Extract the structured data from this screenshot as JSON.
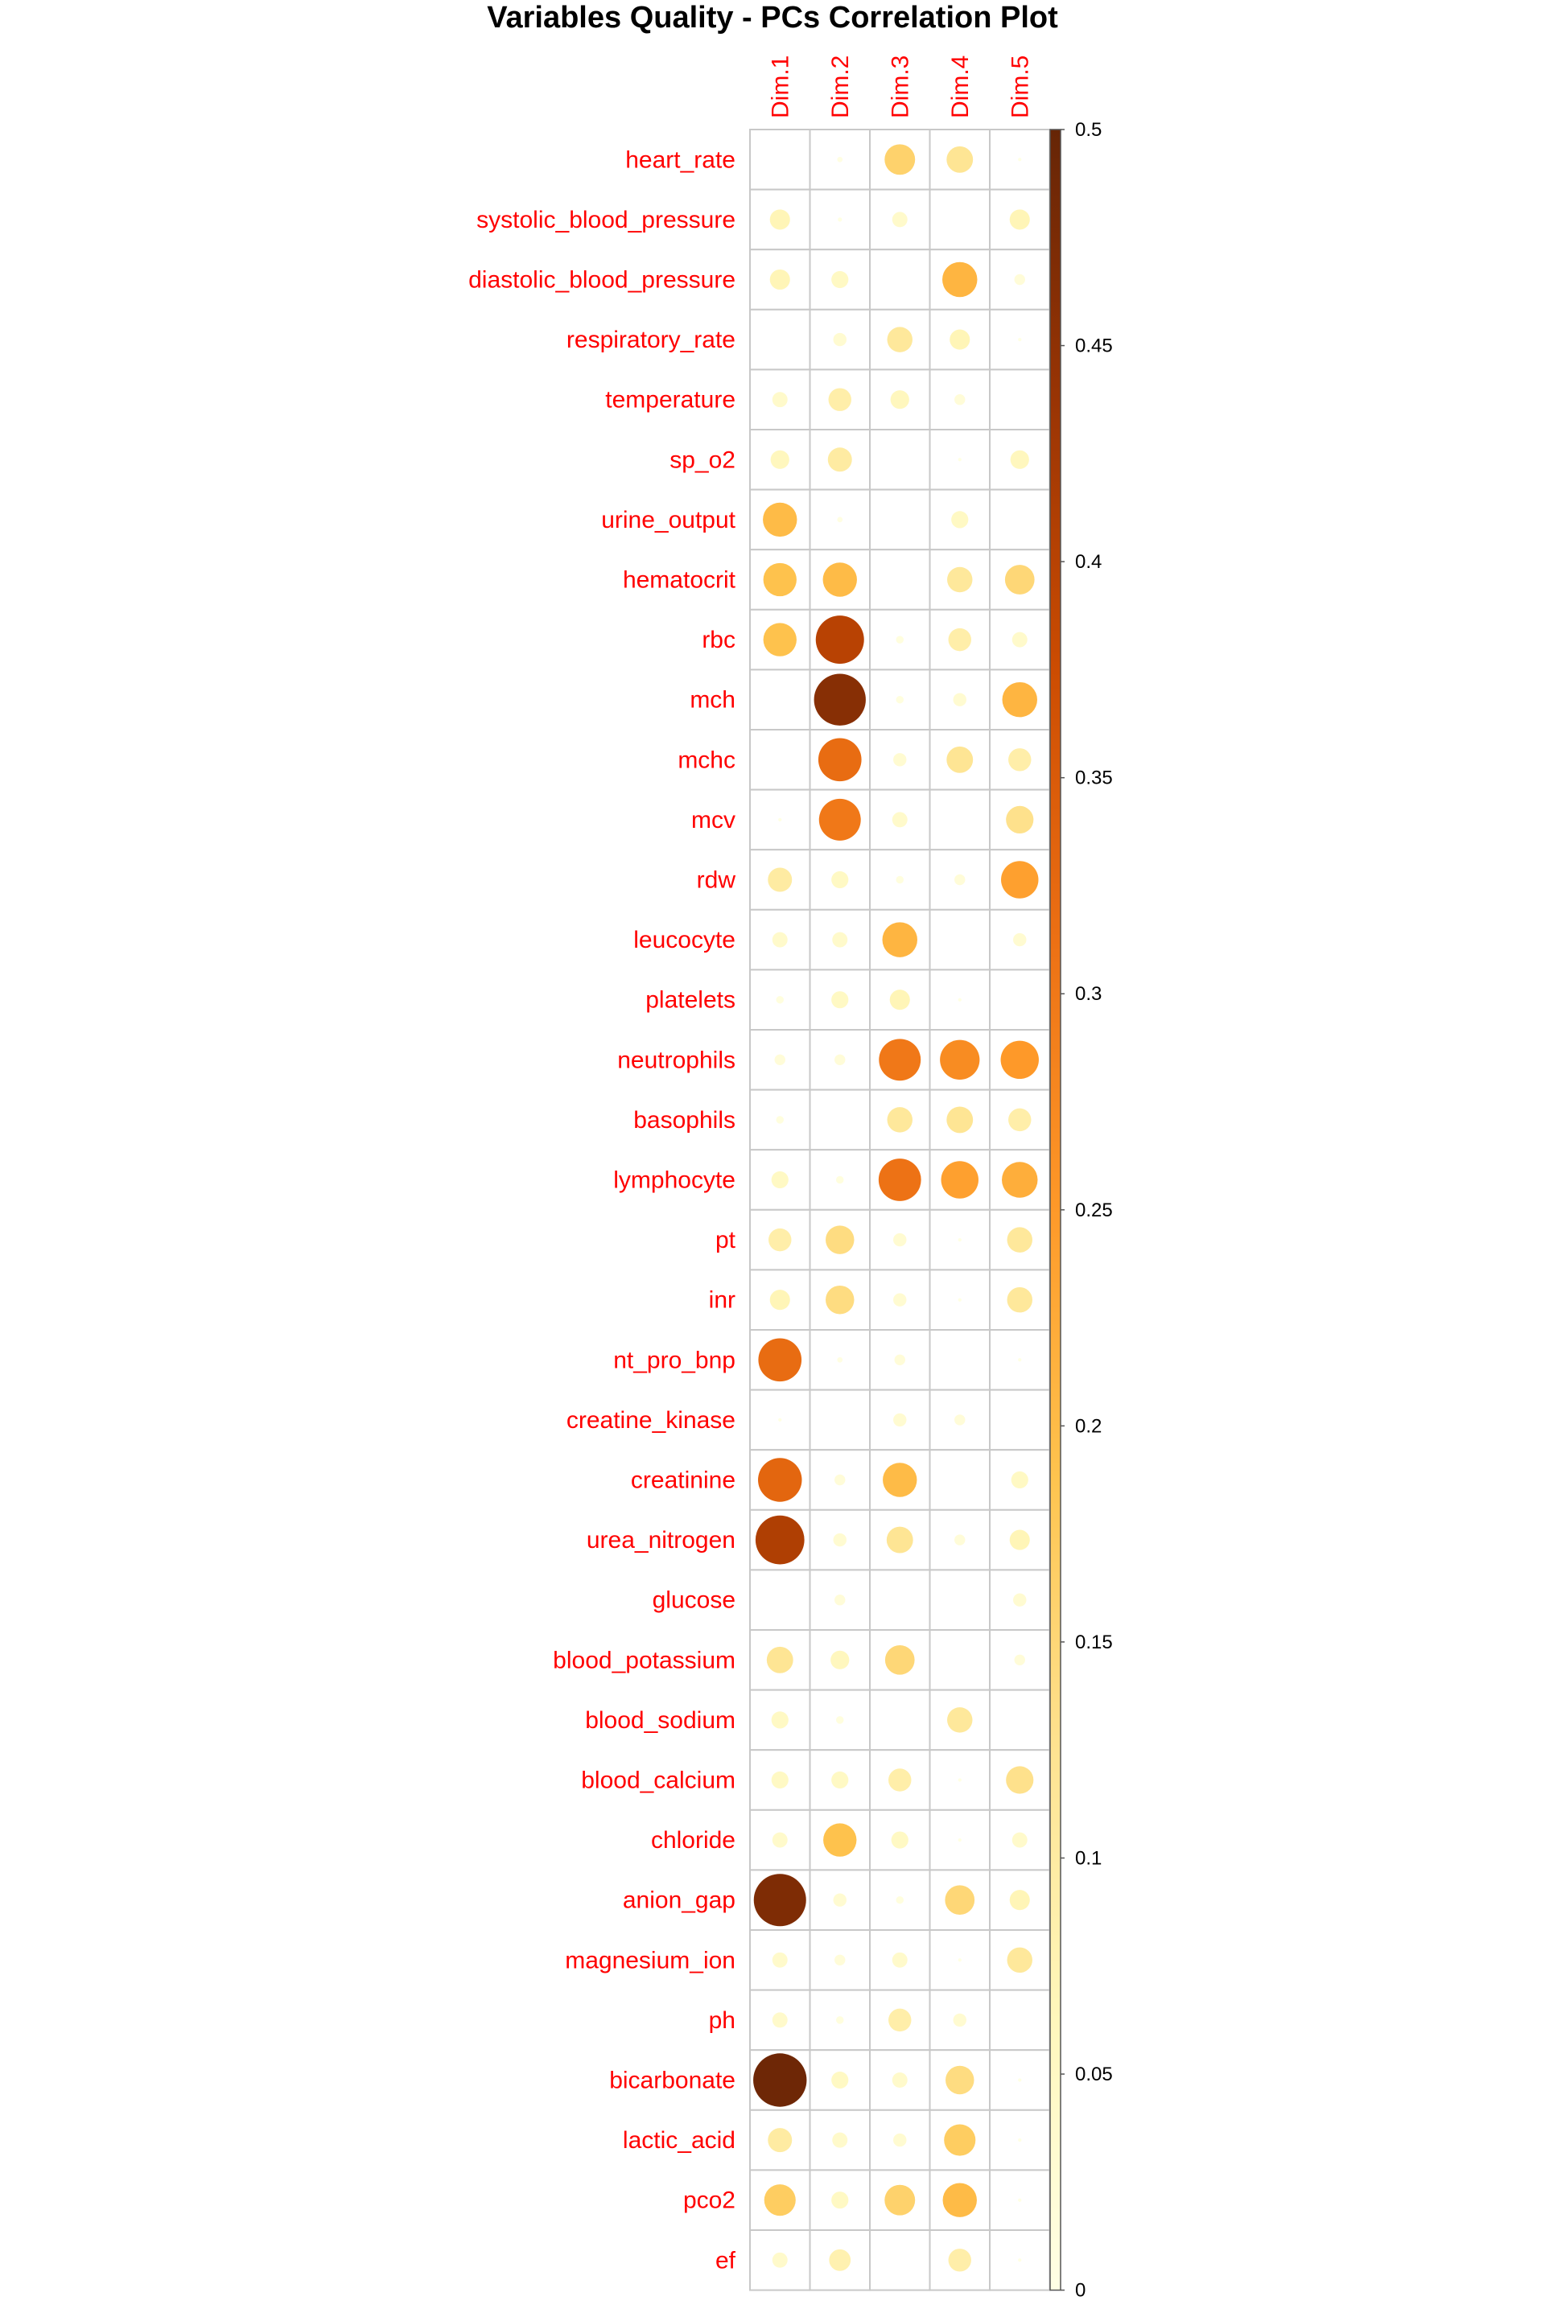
{
  "chart_data": {
    "type": "heatmap",
    "subtype": "corrplot-circle",
    "title": "Variables Quality - PCs Correlation Plot",
    "columns": [
      "Dim.1",
      "Dim.2",
      "Dim.3",
      "Dim.4",
      "Dim.5"
    ],
    "rows": [
      "heart_rate",
      "systolic_blood_pressure",
      "diastolic_blood_pressure",
      "respiratory_rate",
      "temperature",
      "sp_o2",
      "urine_output",
      "hematocrit",
      "rbc",
      "mch",
      "mchc",
      "mcv",
      "rdw",
      "leucocyte",
      "platelets",
      "neutrophils",
      "basophils",
      "lymphocyte",
      "pt",
      "inr",
      "nt_pro_bnp",
      "creatine_kinase",
      "creatinine",
      "urea_nitrogen",
      "glucose",
      "blood_potassium",
      "blood_sodium",
      "blood_calcium",
      "chloride",
      "anion_gap",
      "magnesium_ion",
      "ph",
      "bicarbonate",
      "lactic_acid",
      "pco2",
      "ef"
    ],
    "values": [
      [
        0.0,
        0.005,
        0.16,
        0.12,
        0.002
      ],
      [
        0.07,
        0.003,
        0.04,
        0.0,
        0.07
      ],
      [
        0.07,
        0.05,
        0.0,
        0.21,
        0.02
      ],
      [
        0.0,
        0.03,
        0.11,
        0.07,
        0.002
      ],
      [
        0.04,
        0.09,
        0.06,
        0.02,
        0.0
      ],
      [
        0.06,
        0.1,
        0.0,
        0.002,
        0.06
      ],
      [
        0.2,
        0.005,
        0.0,
        0.05,
        0.0
      ],
      [
        0.19,
        0.2,
        0.0,
        0.11,
        0.15
      ],
      [
        0.19,
        0.4,
        0.01,
        0.09,
        0.04
      ],
      [
        0.0,
        0.46,
        0.01,
        0.03,
        0.21
      ],
      [
        0.0,
        0.32,
        0.03,
        0.12,
        0.09
      ],
      [
        0.002,
        0.3,
        0.04,
        0.0,
        0.13
      ],
      [
        0.1,
        0.05,
        0.01,
        0.02,
        0.24
      ],
      [
        0.04,
        0.04,
        0.21,
        0.0,
        0.03
      ],
      [
        0.01,
        0.05,
        0.07,
        0.002,
        0.0
      ],
      [
        0.02,
        0.02,
        0.3,
        0.27,
        0.25
      ],
      [
        0.01,
        0.0,
        0.11,
        0.12,
        0.09
      ],
      [
        0.05,
        0.01,
        0.31,
        0.24,
        0.22
      ],
      [
        0.09,
        0.14,
        0.03,
        0.002,
        0.11
      ],
      [
        0.07,
        0.14,
        0.03,
        0.002,
        0.11
      ],
      [
        0.32,
        0.005,
        0.02,
        0.0,
        0.002
      ],
      [
        0.002,
        0.0,
        0.03,
        0.02,
        0.0
      ],
      [
        0.33,
        0.02,
        0.2,
        0.0,
        0.05
      ],
      [
        0.41,
        0.03,
        0.12,
        0.02,
        0.07
      ],
      [
        0.0,
        0.02,
        0.0,
        0.0,
        0.03
      ],
      [
        0.12,
        0.06,
        0.15,
        0.0,
        0.02
      ],
      [
        0.05,
        0.01,
        0.0,
        0.11,
        0.0
      ],
      [
        0.05,
        0.05,
        0.09,
        0.002,
        0.13
      ],
      [
        0.04,
        0.19,
        0.05,
        0.002,
        0.04
      ],
      [
        0.47,
        0.03,
        0.01,
        0.15,
        0.07
      ],
      [
        0.04,
        0.02,
        0.04,
        0.002,
        0.11
      ],
      [
        0.04,
        0.01,
        0.09,
        0.03,
        0.0
      ],
      [
        0.49,
        0.05,
        0.04,
        0.14,
        0.002
      ],
      [
        0.1,
        0.04,
        0.03,
        0.17,
        0.002
      ],
      [
        0.17,
        0.05,
        0.16,
        0.2,
        0.002
      ],
      [
        0.04,
        0.08,
        0.0,
        0.09,
        0.002
      ]
    ],
    "colorbar": {
      "min": 0,
      "max": 0.5,
      "ticks": [
        "0",
        "0.05",
        "0.1",
        "0.15",
        "0.2",
        "0.25",
        "0.3",
        "0.35",
        "0.4",
        "0.45",
        "0.5"
      ],
      "palette": [
        "#FFFFE5",
        "#FFF7BC",
        "#FEE391",
        "#FEC44F",
        "#FE9929",
        "#EC7014",
        "#CC4C02",
        "#993404",
        "#662506"
      ]
    },
    "label_color": "#FF0000",
    "grid": true
  }
}
